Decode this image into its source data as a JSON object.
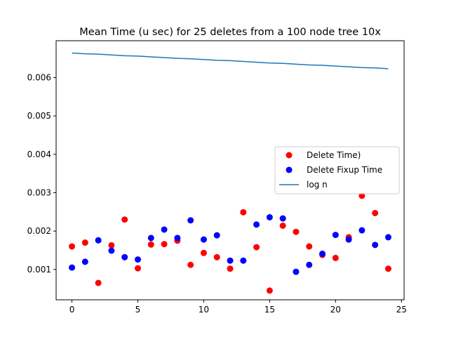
{
  "chart_data": {
    "type": "scatter",
    "title": "Mean Time (u sec) for 25 deletes from a 100 node tree 10x",
    "xlabel": "",
    "ylabel": "",
    "xlim": [
      -1.2,
      25.2
    ],
    "ylim": [
      0.00021,
      0.00696
    ],
    "xticks": [
      0,
      5,
      10,
      15,
      20,
      25
    ],
    "yticks": [
      0.001,
      0.002,
      0.003,
      0.004,
      0.005,
      0.006
    ],
    "ytick_labels": [
      "0.001",
      "0.002",
      "0.003",
      "0.004",
      "0.005",
      "0.006"
    ],
    "grid": false,
    "legend_position": "center-right",
    "x": [
      0,
      1,
      2,
      3,
      4,
      5,
      6,
      7,
      8,
      9,
      10,
      11,
      12,
      13,
      14,
      15,
      16,
      17,
      18,
      19,
      20,
      21,
      22,
      23,
      24
    ],
    "series": [
      {
        "name": "Delete Time)",
        "kind": "scatter",
        "color": "#ff0000",
        "values": [
          0.0016,
          0.0017,
          0.00065,
          0.00163,
          0.0023,
          0.00103,
          0.00165,
          0.00166,
          0.00175,
          0.00112,
          0.00143,
          0.00132,
          0.00102,
          0.00249,
          0.00158,
          0.00045,
          0.00214,
          0.00198,
          0.0016,
          0.00138,
          0.0013,
          0.00184,
          0.00292,
          0.00247,
          0.00102
        ]
      },
      {
        "name": "Delete Fixup Time",
        "kind": "scatter",
        "color": "#0000ff",
        "values": [
          0.00105,
          0.0012,
          0.00176,
          0.00149,
          0.00132,
          0.00126,
          0.00182,
          0.00204,
          0.00182,
          0.00228,
          0.00178,
          0.00189,
          0.00123,
          0.00123,
          0.00217,
          0.00236,
          0.00233,
          0.00094,
          0.00112,
          0.00141,
          0.0019,
          0.00178,
          0.00202,
          0.00164,
          0.00184
        ]
      },
      {
        "name": "log n",
        "kind": "line",
        "color": "#1f77b4",
        "values": [
          0.00664,
          0.00662,
          0.00661,
          0.00659,
          0.00657,
          0.00656,
          0.00654,
          0.00652,
          0.0065,
          0.00649,
          0.00647,
          0.00645,
          0.00644,
          0.00642,
          0.0064,
          0.00638,
          0.00637,
          0.00635,
          0.00633,
          0.00632,
          0.0063,
          0.00628,
          0.00626,
          0.00625,
          0.00623
        ]
      }
    ]
  }
}
